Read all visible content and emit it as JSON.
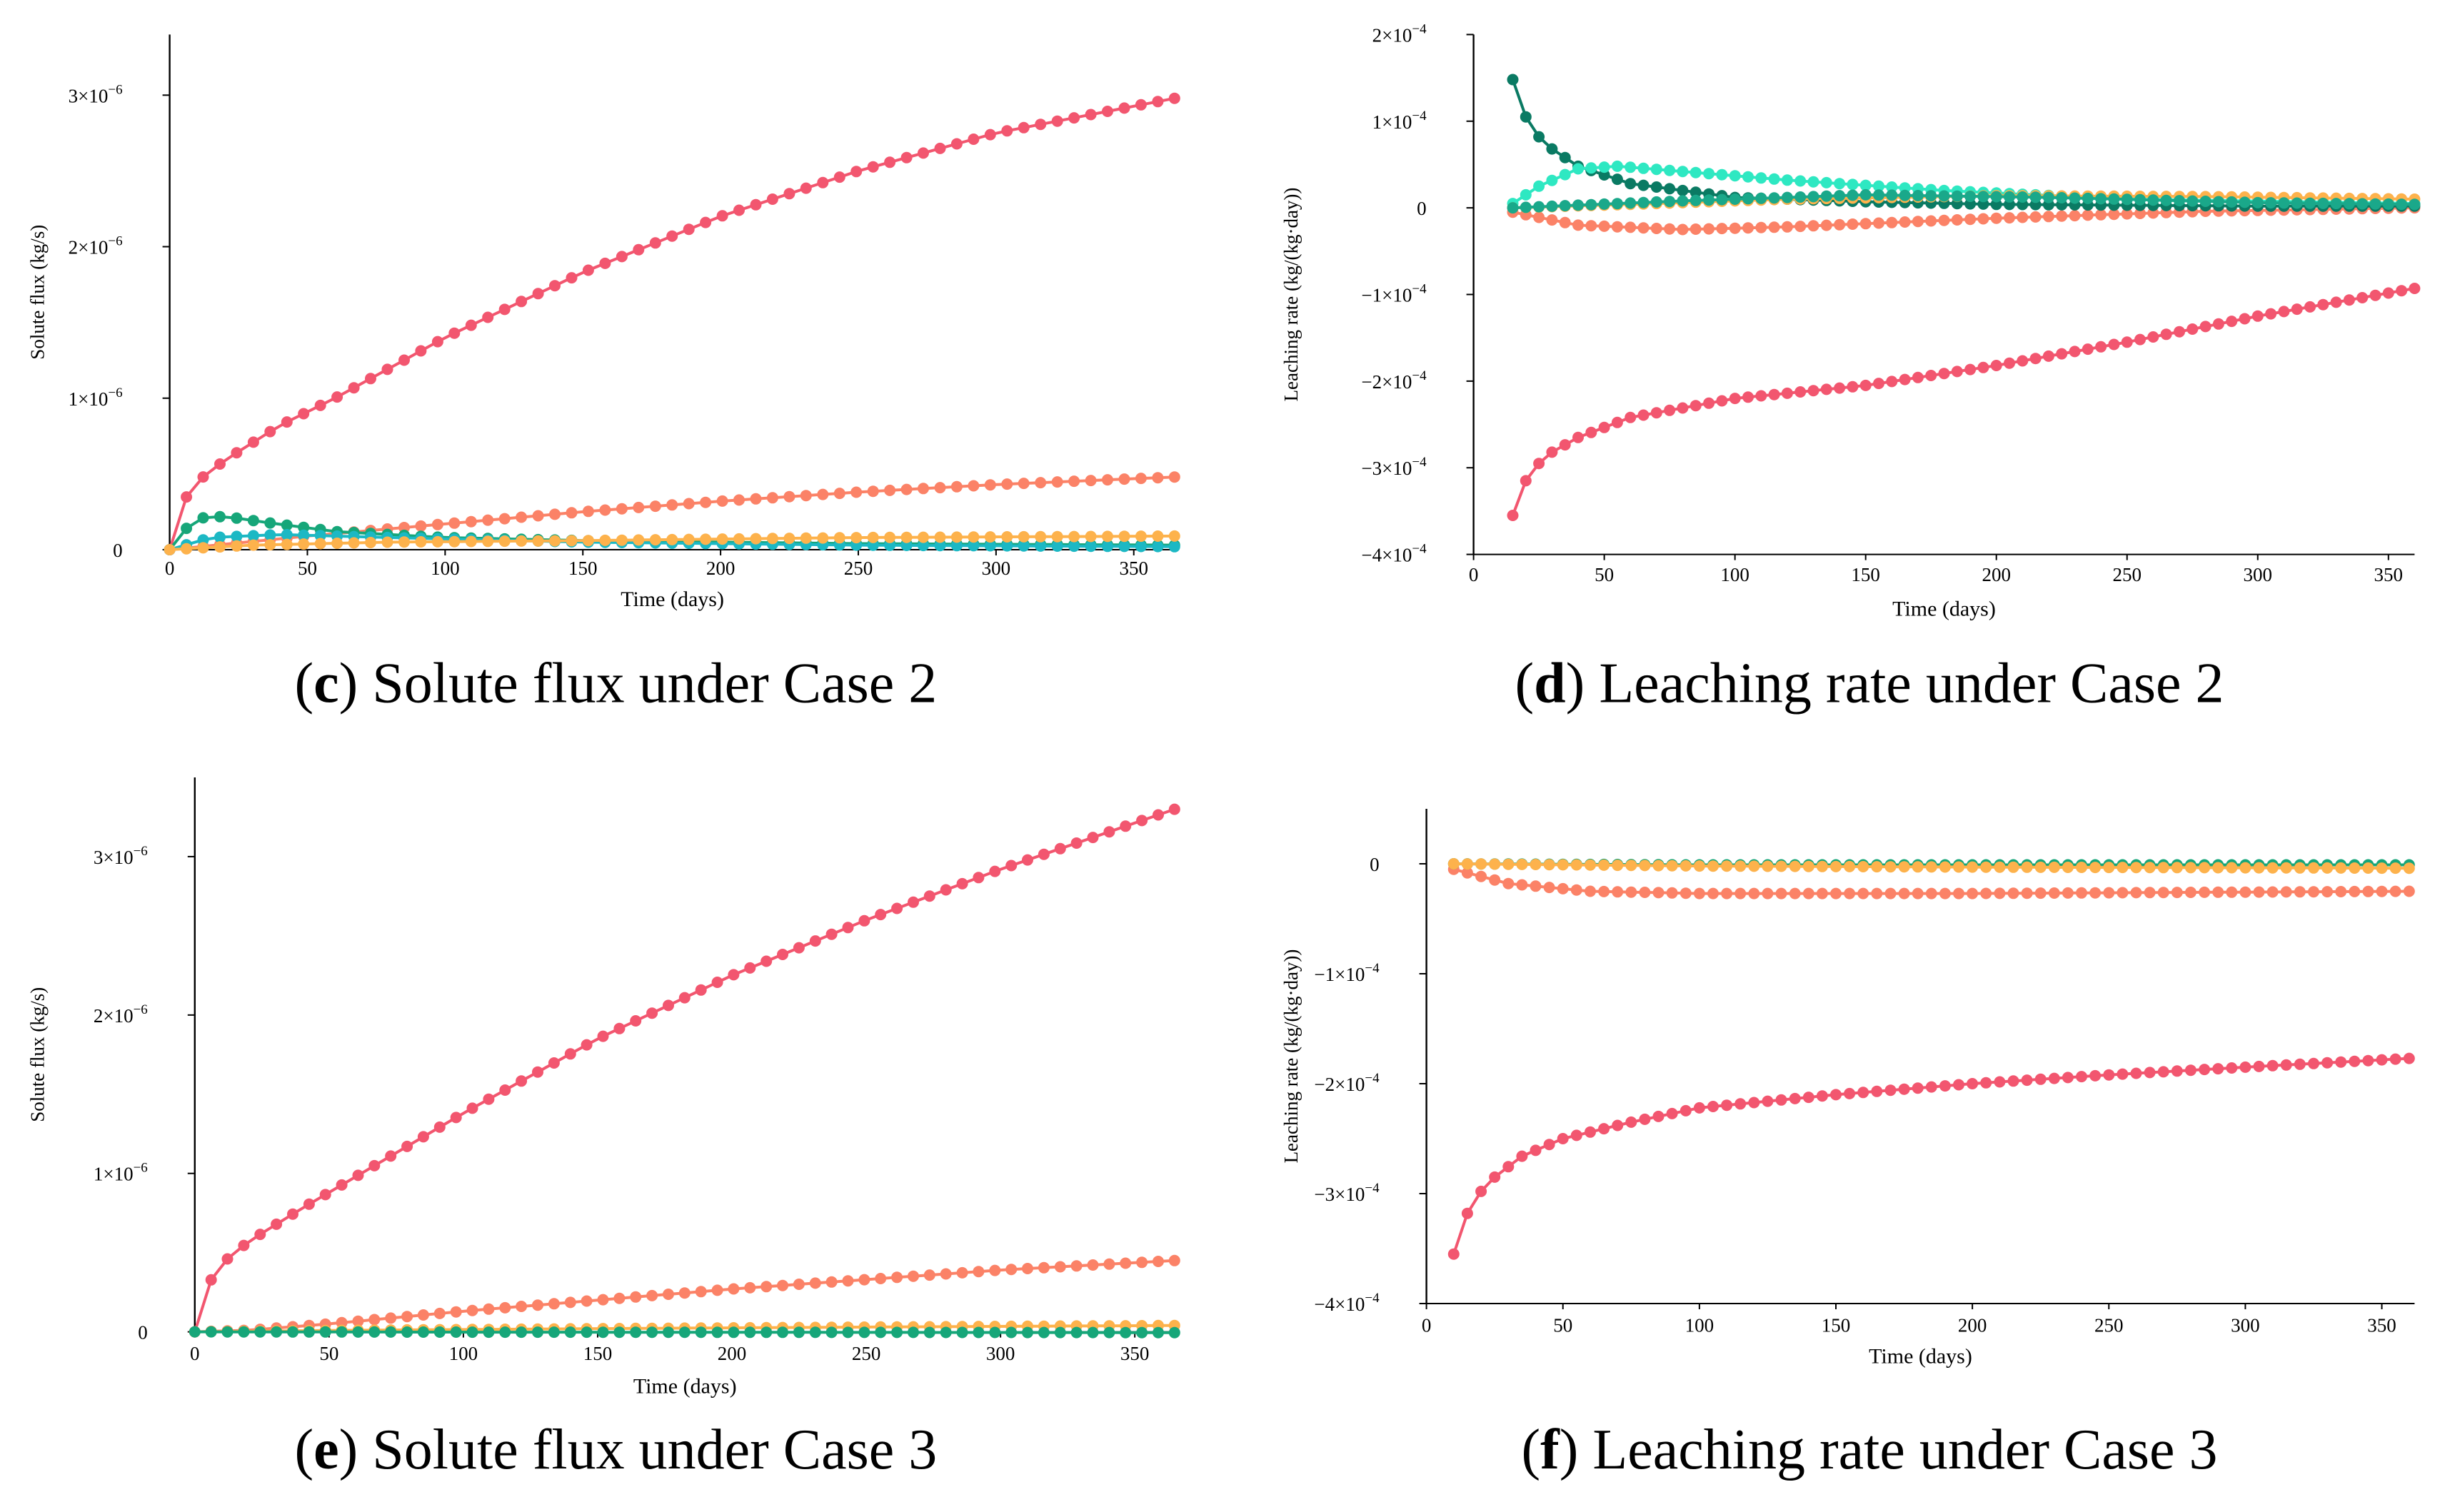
{
  "chart_data": [
    {
      "id": "c",
      "type": "line",
      "caption": {
        "letter": "c",
        "text": " Solute flux under Case 2"
      },
      "xlabel": "Time (days)",
      "ylabel": "Solute flux (kg/s)",
      "xlim": [
        0,
        365
      ],
      "ylim": [
        0,
        3.4e-06
      ],
      "xticks": [
        0,
        50,
        100,
        150,
        200,
        250,
        300,
        350
      ],
      "yticks": [
        {
          "value": 0,
          "mantissa": "0",
          "exp": ""
        },
        {
          "value": 1e-06,
          "mantissa": "1×10",
          "exp": "−6"
        },
        {
          "value": 2e-06,
          "mantissa": "2×10",
          "exp": "−6"
        },
        {
          "value": 3e-06,
          "mantissa": "3×10",
          "exp": "−6"
        }
      ],
      "series": [
        {
          "color": "#f2566f",
          "x_start": 0,
          "x_end": 365,
          "x_step": 6.08,
          "points": [
            [
              0,
              0
            ],
            [
              5,
              3.2e-07
            ],
            [
              10,
              4.5e-07
            ],
            [
              20,
              5.9e-07
            ],
            [
              40,
              8.2e-07
            ],
            [
              60,
              1e-06
            ],
            [
              100,
              1.4e-06
            ],
            [
              150,
              1.83e-06
            ],
            [
              200,
              2.2e-06
            ],
            [
              250,
              2.5e-06
            ],
            [
              300,
              2.75e-06
            ],
            [
              365,
              2.98e-06
            ]
          ]
        },
        {
          "color": "#fb8267",
          "x_start": 0,
          "x_end": 365,
          "x_step": 6.08,
          "points": [
            [
              0,
              0
            ],
            [
              50,
              9e-08
            ],
            [
              100,
              1.7e-07
            ],
            [
              150,
              2.5e-07
            ],
            [
              200,
              3.2e-07
            ],
            [
              250,
              3.8e-07
            ],
            [
              300,
              4.3e-07
            ],
            [
              365,
              4.8e-07
            ]
          ]
        },
        {
          "color": "#16a679",
          "x_start": 0,
          "x_end": 365,
          "x_step": 6.08,
          "points": [
            [
              0,
              0
            ],
            [
              6,
              1.4e-07
            ],
            [
              12,
              2.1e-07
            ],
            [
              20,
              2.2e-07
            ],
            [
              35,
              1.8e-07
            ],
            [
              60,
              1.2e-07
            ],
            [
              100,
              8e-08
            ],
            [
              150,
              6e-08
            ],
            [
              250,
              4e-08
            ],
            [
              365,
              3e-08
            ]
          ]
        },
        {
          "color": "#1cb8c4",
          "x_start": 0,
          "x_end": 365,
          "x_step": 6.08,
          "points": [
            [
              0,
              0
            ],
            [
              15,
              8e-08
            ],
            [
              40,
              1e-07
            ],
            [
              80,
              8e-08
            ],
            [
              150,
              5e-08
            ],
            [
              250,
              3e-08
            ],
            [
              365,
              2e-08
            ]
          ]
        },
        {
          "color": "#fdb24c",
          "x_start": 0,
          "x_end": 365,
          "x_step": 6.08,
          "points": [
            [
              0,
              0
            ],
            [
              30,
              3e-08
            ],
            [
              80,
              5e-08
            ],
            [
              150,
              6e-08
            ],
            [
              250,
              8e-08
            ],
            [
              365,
              9e-08
            ]
          ]
        }
      ]
    },
    {
      "id": "d",
      "type": "line",
      "caption": {
        "letter": "d",
        "text": " Leaching rate under Case 2"
      },
      "xlabel": "Time (days)",
      "ylabel": "Leaching rate (kg/(kg·day))",
      "xlim": [
        0,
        360
      ],
      "ylim": [
        -0.0004,
        0.0002
      ],
      "xticks": [
        0,
        50,
        100,
        150,
        200,
        250,
        300,
        350
      ],
      "yticks": [
        {
          "value": 0.0002,
          "mantissa": "2×10",
          "exp": "−4"
        },
        {
          "value": 0.0001,
          "mantissa": "1×10",
          "exp": "−4"
        },
        {
          "value": 0,
          "mantissa": "0",
          "exp": ""
        },
        {
          "value": -0.0001,
          "mantissa": "−1×10",
          "exp": "−4"
        },
        {
          "value": -0.0002,
          "mantissa": "−2×10",
          "exp": "−4"
        },
        {
          "value": -0.0003,
          "mantissa": "−3×10",
          "exp": "−4"
        },
        {
          "value": -0.0004,
          "mantissa": "−4×10",
          "exp": "−4"
        }
      ],
      "series": [
        {
          "color": "#f2566f",
          "x_start": 15,
          "x_end": 360,
          "x_step": 5,
          "points": [
            [
              15,
              -0.000355
            ],
            [
              20,
              -0.000315
            ],
            [
              25,
              -0.000295
            ],
            [
              30,
              -0.000282
            ],
            [
              40,
              -0.000265
            ],
            [
              60,
              -0.000242
            ],
            [
              100,
              -0.00022
            ],
            [
              150,
              -0.000205
            ],
            [
              200,
              -0.000182
            ],
            [
              250,
              -0.000155
            ],
            [
              300,
              -0.000125
            ],
            [
              360,
              -9.3e-05
            ]
          ]
        },
        {
          "color": "#fb8267",
          "x_start": 15,
          "x_end": 360,
          "x_step": 5,
          "points": [
            [
              15,
              -5e-06
            ],
            [
              40,
              -2e-05
            ],
            [
              80,
              -2.5e-05
            ],
            [
              120,
              -2.2e-05
            ],
            [
              200,
              -1.2e-05
            ],
            [
              280,
              -4e-06
            ],
            [
              360,
              0
            ]
          ]
        },
        {
          "color": "#0a7a63",
          "x_start": 15,
          "x_end": 360,
          "x_step": 5,
          "points": [
            [
              15,
              0.000148
            ],
            [
              20,
              0.000105
            ],
            [
              25,
              8.2e-05
            ],
            [
              30,
              6.8e-05
            ],
            [
              40,
              4.8e-05
            ],
            [
              60,
              2.8e-05
            ],
            [
              100,
              1.2e-05
            ],
            [
              150,
              7e-06
            ],
            [
              200,
              4e-06
            ],
            [
              300,
              2e-06
            ],
            [
              360,
              2e-06
            ]
          ]
        },
        {
          "color": "#2ee8c2",
          "x_start": 15,
          "x_end": 360,
          "x_step": 5,
          "points": [
            [
              15,
              5e-06
            ],
            [
              25,
              2.5e-05
            ],
            [
              40,
              4.5e-05
            ],
            [
              55,
              4.8e-05
            ],
            [
              80,
              4.2e-05
            ],
            [
              120,
              3.2e-05
            ],
            [
              180,
              2e-05
            ],
            [
              250,
              1e-05
            ],
            [
              360,
              5e-06
            ]
          ]
        },
        {
          "color": "#fdb24c",
          "x_start": 15,
          "x_end": 360,
          "x_step": 5,
          "points": [
            [
              15,
              0
            ],
            [
              60,
              4e-06
            ],
            [
              120,
              1e-05
            ],
            [
              200,
              1.4e-05
            ],
            [
              280,
              1.3e-05
            ],
            [
              360,
              1e-05
            ]
          ]
        },
        {
          "color": "#1aa88a",
          "x_start": 15,
          "x_end": 360,
          "x_step": 5,
          "points": [
            [
              15,
              0
            ],
            [
              80,
              8e-06
            ],
            [
              150,
              1.5e-05
            ],
            [
              220,
              1.2e-05
            ],
            [
              300,
              6e-06
            ],
            [
              360,
              4e-06
            ]
          ]
        }
      ]
    },
    {
      "id": "e",
      "type": "line",
      "caption": {
        "letter": "e",
        "text": " Solute flux under Case 3"
      },
      "xlabel": "Time (days)",
      "ylabel": "Solute flux (kg/s)",
      "xlim": [
        0,
        365
      ],
      "ylim": [
        0,
        3.5e-06
      ],
      "xticks": [
        0,
        50,
        100,
        150,
        200,
        250,
        300,
        350
      ],
      "yticks": [
        {
          "value": 0,
          "mantissa": "0",
          "exp": ""
        },
        {
          "value": 1e-06,
          "mantissa": "1×10",
          "exp": "−6"
        },
        {
          "value": 2e-06,
          "mantissa": "2×10",
          "exp": "−6"
        },
        {
          "value": 3e-06,
          "mantissa": "3×10",
          "exp": "−6"
        }
      ],
      "series": [
        {
          "color": "#f2566f",
          "x_start": 0,
          "x_end": 365,
          "x_step": 6.08,
          "points": [
            [
              0,
              0
            ],
            [
              5,
              3e-07
            ],
            [
              10,
              4.3e-07
            ],
            [
              20,
              5.7e-07
            ],
            [
              40,
              7.8e-07
            ],
            [
              60,
              9.8e-07
            ],
            [
              100,
              1.38e-06
            ],
            [
              150,
              1.85e-06
            ],
            [
              200,
              2.25e-06
            ],
            [
              250,
              2.6e-06
            ],
            [
              300,
              2.92e-06
            ],
            [
              365,
              3.3e-06
            ]
          ]
        },
        {
          "color": "#fb8267",
          "x_start": 0,
          "x_end": 365,
          "x_step": 6.08,
          "points": [
            [
              0,
              0
            ],
            [
              20,
              1e-08
            ],
            [
              50,
              5e-08
            ],
            [
              100,
              1.3e-07
            ],
            [
              150,
              2e-07
            ],
            [
              200,
              2.7e-07
            ],
            [
              250,
              3.3e-07
            ],
            [
              300,
              3.9e-07
            ],
            [
              365,
              4.5e-07
            ]
          ]
        },
        {
          "color": "#fdb24c",
          "x_start": 0,
          "x_end": 365,
          "x_step": 6.08,
          "points": [
            [
              0,
              0
            ],
            [
              60,
              1e-08
            ],
            [
              150,
              2e-08
            ],
            [
              250,
              3e-08
            ],
            [
              365,
              4e-08
            ]
          ]
        },
        {
          "color": "#16a679",
          "x_start": 0,
          "x_end": 365,
          "x_step": 6.08,
          "points": [
            [
              0,
              0
            ],
            [
              100,
              -2e-09
            ],
            [
              200,
              -3e-09
            ],
            [
              365,
              -5e-09
            ]
          ]
        }
      ]
    },
    {
      "id": "f",
      "type": "line",
      "caption": {
        "letter": "f",
        "text": " Leaching rate under Case 3"
      },
      "xlabel": "Time (days)",
      "ylabel": "Leaching rate (kg/(kg·day))",
      "xlim": [
        0,
        362
      ],
      "ylim": [
        -0.0004,
        5e-05
      ],
      "xticks": [
        0,
        50,
        100,
        150,
        200,
        250,
        300,
        350
      ],
      "yticks": [
        {
          "value": 0,
          "mantissa": "0",
          "exp": ""
        },
        {
          "value": -0.0001,
          "mantissa": "−1×10",
          "exp": "−4"
        },
        {
          "value": -0.0002,
          "mantissa": "−2×10",
          "exp": "−4"
        },
        {
          "value": -0.0003,
          "mantissa": "−3×10",
          "exp": "−4"
        },
        {
          "value": -0.0004,
          "mantissa": "−4×10",
          "exp": "−4"
        }
      ],
      "series": [
        {
          "color": "#f2566f",
          "x_start": 10,
          "x_end": 360,
          "x_step": 5,
          "points": [
            [
              10,
              -0.000355
            ],
            [
              15,
              -0.000318
            ],
            [
              20,
              -0.000298
            ],
            [
              25,
              -0.000285
            ],
            [
              35,
              -0.000266
            ],
            [
              50,
              -0.00025
            ],
            [
              75,
              -0.000235
            ],
            [
              100,
              -0.000222
            ],
            [
              150,
              -0.00021
            ],
            [
              200,
              -0.0002
            ],
            [
              250,
              -0.000192
            ],
            [
              300,
              -0.000185
            ],
            [
              360,
              -0.000177
            ]
          ]
        },
        {
          "color": "#fb8267",
          "x_start": 10,
          "x_end": 360,
          "x_step": 5,
          "points": [
            [
              10,
              -5e-06
            ],
            [
              30,
              -1.8e-05
            ],
            [
              60,
              -2.5e-05
            ],
            [
              100,
              -2.7e-05
            ],
            [
              200,
              -2.7e-05
            ],
            [
              360,
              -2.5e-05
            ]
          ]
        },
        {
          "color": "#16a679",
          "x_start": 10,
          "x_end": 360,
          "x_step": 5,
          "points": [
            [
              10,
              0
            ],
            [
              100,
              -1e-06
            ],
            [
              200,
              -1e-06
            ],
            [
              360,
              -1e-06
            ]
          ]
        },
        {
          "color": "#fdb24c",
          "x_start": 10,
          "x_end": 360,
          "x_step": 5,
          "points": [
            [
              10,
              0
            ],
            [
              100,
              -2e-06
            ],
            [
              200,
              -3e-06
            ],
            [
              360,
              -4e-06
            ]
          ]
        }
      ]
    }
  ]
}
